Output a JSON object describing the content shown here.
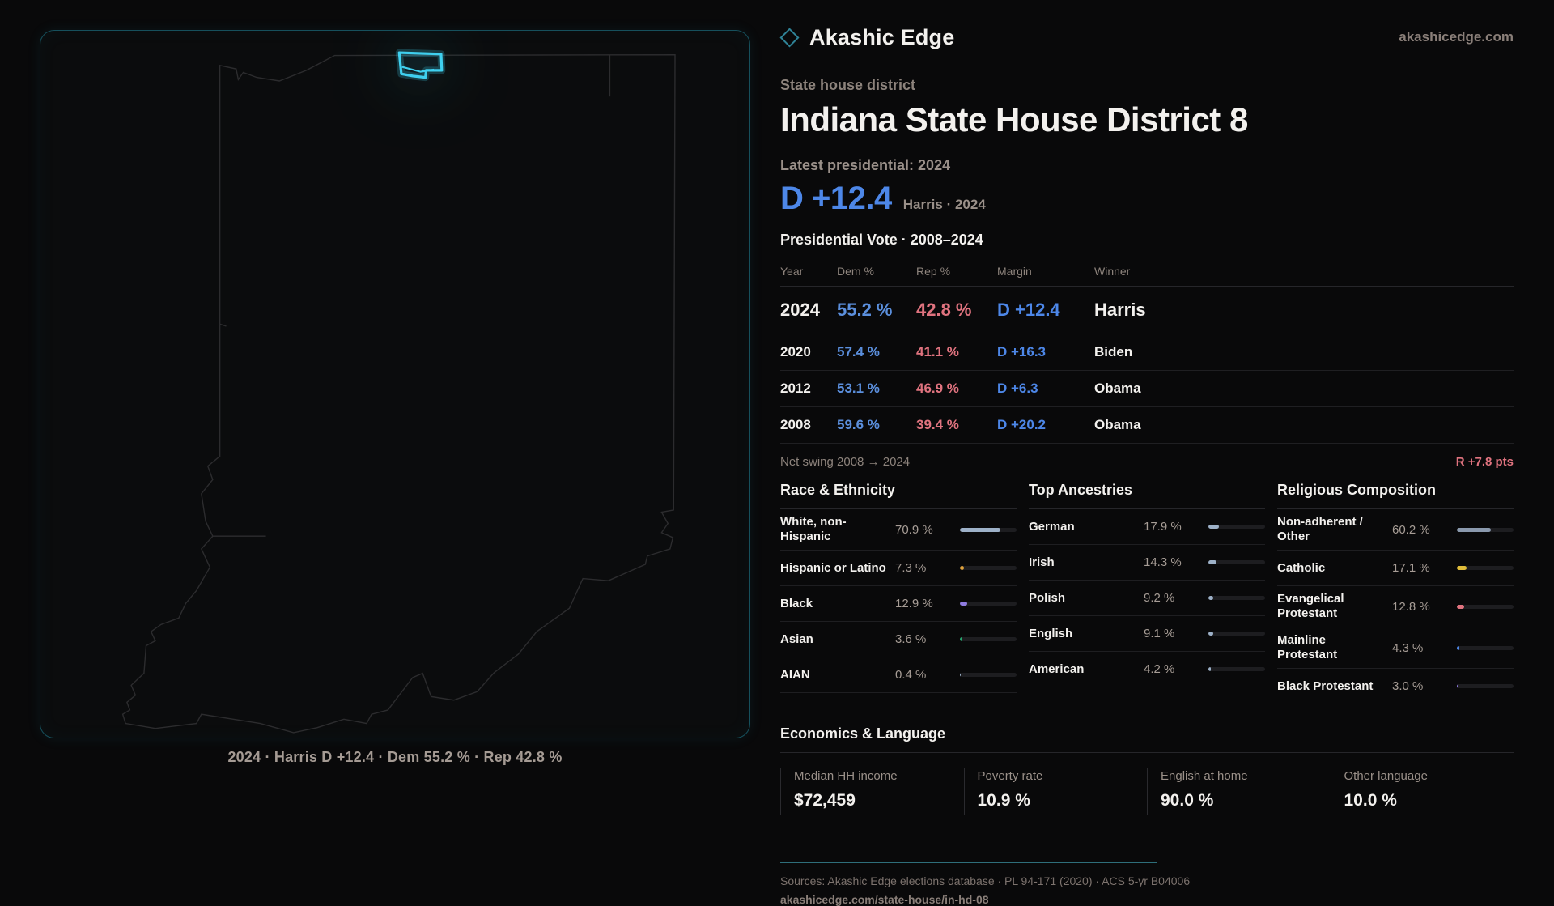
{
  "brand": {
    "name": "Akashic Edge",
    "site": "akashicedge.com",
    "icon": "diamond-icon"
  },
  "page": {
    "kicker": "State house district",
    "title": "Indiana State House District 8"
  },
  "latest": {
    "label": "Latest presidential: 2024",
    "value": "D +12.4",
    "context": "Harris · 2024"
  },
  "table": {
    "title": "Presidential Vote · 2008–2024",
    "headers": [
      "Year",
      "Dem %",
      "Rep %",
      "Margin",
      "Winner"
    ],
    "rows": [
      {
        "year": "2024",
        "dem": "55.2 %",
        "rep": "42.8 %",
        "margin": "D +12.4",
        "winner": "Harris"
      },
      {
        "year": "2020",
        "dem": "57.4 %",
        "rep": "41.1 %",
        "margin": "D +16.3",
        "winner": "Biden"
      },
      {
        "year": "2012",
        "dem": "53.1 %",
        "rep": "46.9 %",
        "margin": "D +6.3",
        "winner": "Obama"
      },
      {
        "year": "2008",
        "dem": "59.6 %",
        "rep": "39.4 %",
        "margin": "D +20.2",
        "winner": "Obama"
      }
    ]
  },
  "net_swing": {
    "label": "Net swing 2008 → 2024",
    "value": "R +7.8 pts"
  },
  "chart_data": {
    "type": "bar",
    "groups": [
      {
        "title": "Race & Ethnicity",
        "categories": [
          "White, non-Hispanic",
          "Hispanic or Latino",
          "Black",
          "Asian",
          "AIAN"
        ],
        "values": [
          70.9,
          7.3,
          12.9,
          3.6,
          0.4
        ],
        "xlim": [
          0,
          100
        ]
      },
      {
        "title": "Top Ancestries",
        "categories": [
          "German",
          "Irish",
          "Polish",
          "English",
          "American"
        ],
        "values": [
          17.9,
          14.3,
          9.2,
          9.1,
          4.2
        ],
        "xlim": [
          0,
          100
        ]
      },
      {
        "title": "Religious Composition",
        "categories": [
          "Non-adherent / Other",
          "Catholic",
          "Evangelical Protestant",
          "Mainline Protestant",
          "Black Protestant"
        ],
        "values": [
          60.2,
          17.1,
          12.8,
          4.3,
          3.0
        ],
        "xlim": [
          0,
          100
        ]
      }
    ]
  },
  "demographics": {
    "race": {
      "title": "Race & Ethnicity",
      "rows": [
        {
          "label": "White, non-Hispanic",
          "value": "70.9 %",
          "pct": 70.9,
          "color": "#9db1c8"
        },
        {
          "label": "Hispanic or Latino",
          "value": "7.3 %",
          "pct": 7.3,
          "color": "#e0a23c"
        },
        {
          "label": "Black",
          "value": "12.9 %",
          "pct": 12.9,
          "color": "#8f7ce0"
        },
        {
          "label": "Asian",
          "value": "3.6 %",
          "pct": 3.6,
          "color": "#27a56f"
        },
        {
          "label": "AIAN",
          "value": "0.4 %",
          "pct": 0.4,
          "color": "#9db1c8"
        }
      ]
    },
    "ancestry": {
      "title": "Top Ancestries",
      "rows": [
        {
          "label": "German",
          "value": "17.9 %",
          "pct": 17.9,
          "color": "#9db1c8"
        },
        {
          "label": "Irish",
          "value": "14.3 %",
          "pct": 14.3,
          "color": "#9db1c8"
        },
        {
          "label": "Polish",
          "value": "9.2 %",
          "pct": 9.2,
          "color": "#9db1c8"
        },
        {
          "label": "English",
          "value": "9.1 %",
          "pct": 9.1,
          "color": "#9db1c8"
        },
        {
          "label": "American",
          "value": "4.2 %",
          "pct": 4.2,
          "color": "#9db1c8"
        }
      ]
    },
    "religion": {
      "title": "Religious Composition",
      "rows": [
        {
          "label": "Non-adherent / Other",
          "value": "60.2 %",
          "pct": 60.2,
          "color": "#8a99ad"
        },
        {
          "label": "Catholic",
          "value": "17.1 %",
          "pct": 17.1,
          "color": "#e0bd3a"
        },
        {
          "label": "Evangelical Protestant",
          "value": "12.8 %",
          "pct": 12.8,
          "color": "#e0737f"
        },
        {
          "label": "Mainline Protestant",
          "value": "4.3 %",
          "pct": 4.3,
          "color": "#4d87e8"
        },
        {
          "label": "Black Protestant",
          "value": "3.0 %",
          "pct": 3.0,
          "color": "#8f7ce0"
        }
      ]
    }
  },
  "economics": {
    "title": "Economics & Language",
    "cards": [
      {
        "label": "Median HH income",
        "value": "$72,459"
      },
      {
        "label": "Poverty rate",
        "value": "10.9 %"
      },
      {
        "label": "English at home",
        "value": "90.0 %"
      },
      {
        "label": "Other language",
        "value": "10.0 %"
      }
    ]
  },
  "footer": {
    "sources": "Sources: Akashic Edge elections database · PL 94-171 (2020) · ACS 5-yr B04006",
    "permalink": "akashicedge.com/state-house/in-hd-08"
  },
  "map": {
    "caption": "2024 · Harris D +12.4 · Dem 55.2 % · Rep 42.8 %",
    "district_color": "#3fd0ef"
  }
}
